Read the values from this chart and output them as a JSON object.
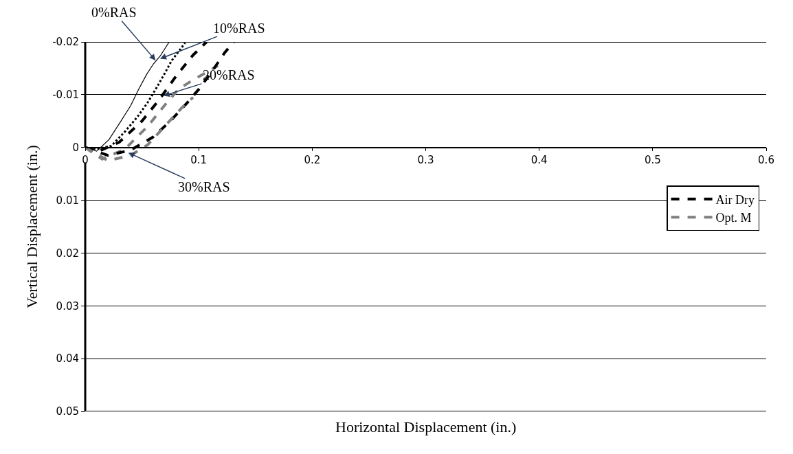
{
  "chart_data": {
    "type": "line",
    "xlabel": "Horizontal Displacement (in.)",
    "ylabel": "Vertical Displacement (in.)",
    "xlim": [
      0,
      0.6
    ],
    "xticks": [
      0,
      0.1,
      0.2,
      0.3,
      0.4,
      0.5,
      0.6
    ],
    "ylim": [
      0.05,
      -0.02
    ],
    "yticks": [
      -0.02,
      -0.01,
      0,
      0.01,
      0.02,
      0.03,
      0.04,
      0.05
    ],
    "grid": "y",
    "legend": "right",
    "marker": "none",
    "series": [
      {
        "color": "#000000",
        "line_style": "solid",
        "x": [
          0,
          0.01,
          0.021,
          0.03,
          0.04,
          0.047,
          0.054,
          0.06,
          0.066,
          0.074
        ],
        "values": [
          0,
          0.0007,
          -0.0015,
          -0.0045,
          -0.0079,
          -0.011,
          -0.0138,
          -0.0158,
          -0.0173,
          -0.02
        ]
      },
      {
        "color": "#000000",
        "line_style": "dotted",
        "x": [
          0,
          0.01,
          0.023,
          0.035,
          0.046,
          0.055,
          0.062,
          0.07,
          0.076,
          0.088
        ],
        "values": [
          0,
          0.0003,
          -0.0003,
          -0.003,
          -0.0058,
          -0.0085,
          -0.011,
          -0.014,
          -0.0164,
          -0.0198
        ]
      },
      {
        "name": "Air Dry",
        "color": "#000000",
        "line_style": "dashed",
        "x": [
          0,
          0.011,
          0.03,
          0.05,
          0.065,
          0.08,
          0.095,
          0.107
        ],
        "values": [
          0,
          0.0008,
          -0.001,
          -0.005,
          -0.009,
          -0.0135,
          -0.0175,
          -0.02
        ]
      },
      {
        "name": "Opt. M",
        "color": "#808080",
        "line_style": "dashed",
        "x": [
          0,
          0.015,
          0.035,
          0.055,
          0.07,
          0.082,
          0.095,
          0.105,
          0.117
        ],
        "values": [
          0,
          0.0022,
          0.0003,
          -0.004,
          -0.008,
          -0.011,
          -0.0128,
          -0.014,
          -0.0155
        ]
      },
      {
        "color": "#000000",
        "line_style": "dashed",
        "x": [
          0,
          0.02,
          0.04,
          0.06,
          0.075,
          0.09,
          0.1,
          0.112,
          0.123,
          0.131
        ],
        "values": [
          0,
          0.0015,
          0.0005,
          -0.002,
          -0.005,
          -0.0085,
          -0.011,
          -0.0145,
          -0.018,
          -0.02
        ]
      },
      {
        "color": "#808080",
        "line_style": "dashed",
        "x": [
          0,
          0.02,
          0.04,
          0.055,
          0.07,
          0.085,
          0.095
        ],
        "values": [
          0,
          0.0025,
          0.0015,
          -0.0005,
          -0.004,
          -0.0075,
          -0.0095
        ]
      }
    ],
    "annotations": [
      {
        "text": "0%RAS",
        "x": 0.062,
        "y": -0.0165
      },
      {
        "text": "10%RAS",
        "x": 0.066,
        "y": -0.0168
      },
      {
        "text": "20%RAS",
        "x": 0.069,
        "y": -0.0098
      },
      {
        "text": "30%RAS",
        "x": 0.038,
        "y": 0.001
      }
    ]
  }
}
